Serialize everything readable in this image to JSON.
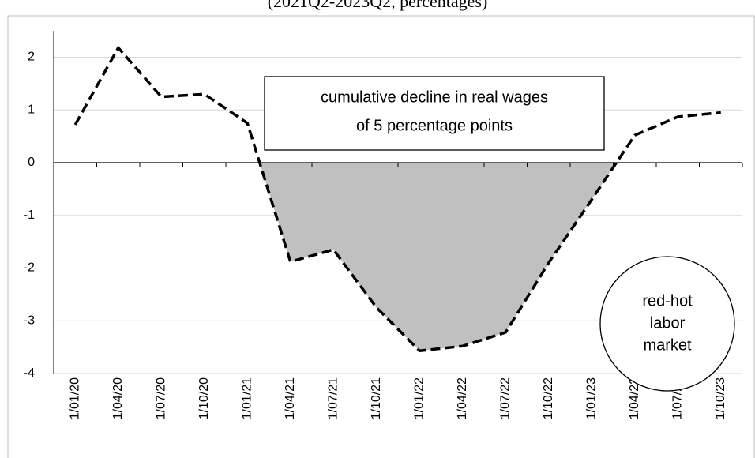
{
  "chart_data": {
    "type": "line",
    "subtitle": "(2021Q2-2023Q2, percentages)",
    "categories": [
      "1/01/20",
      "1/04/20",
      "1/07/20",
      "1/10/20",
      "1/01/21",
      "1/04/21",
      "1/07/21",
      "1/10/21",
      "1/01/22",
      "1/04/22",
      "1/07/22",
      "1/10/22",
      "1/01/23",
      "1/04/23",
      "1/07/23",
      "1/10/23"
    ],
    "series": [
      {
        "color": "#000000",
        "values": [
          0.72,
          2.18,
          1.25,
          1.3,
          0.75,
          -1.88,
          -1.65,
          -2.75,
          -3.57,
          -3.48,
          -3.22,
          -1.9,
          -0.7,
          0.52,
          0.87,
          0.95
        ]
      }
    ],
    "area_color": "#c0c0c0",
    "ylim": [
      -4,
      2.5
    ],
    "yticks": [
      -4,
      -3,
      -2,
      -1,
      0,
      1,
      2
    ],
    "grid": true,
    "annotations": [
      {
        "lines": [
          "cumulative decline in real wages",
          "of 5 percentage points"
        ]
      },
      {
        "lines": [
          "red-hot",
          "labor",
          "market"
        ]
      }
    ]
  }
}
